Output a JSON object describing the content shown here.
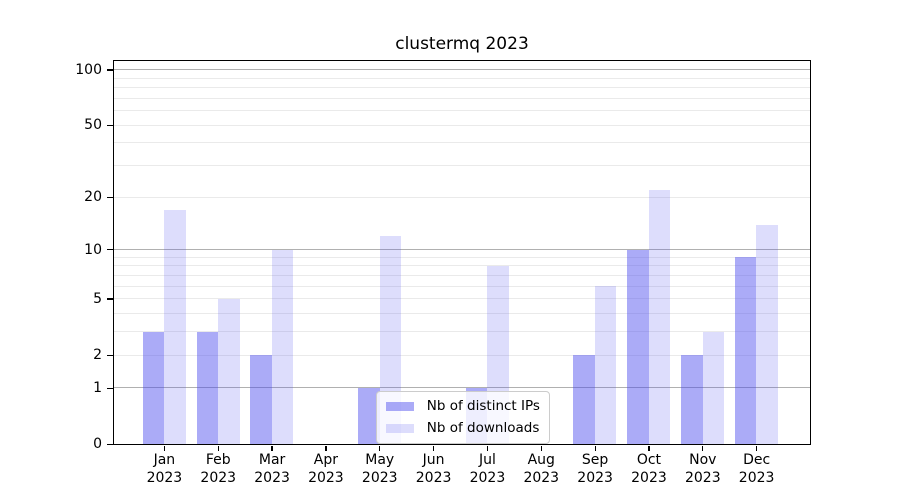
{
  "chart_data": {
    "type": "bar",
    "title": "clustermq 2023",
    "categories": [
      "Jan 2023",
      "Feb 2023",
      "Mar 2023",
      "Apr 2023",
      "May 2023",
      "Jun 2023",
      "Jul 2023",
      "Aug 2023",
      "Sep 2023",
      "Oct 2023",
      "Nov 2023",
      "Dec 2023"
    ],
    "month_labels": [
      "Jan",
      "Feb",
      "Mar",
      "Apr",
      "May",
      "Jun",
      "Jul",
      "Aug",
      "Sep",
      "Oct",
      "Nov",
      "Dec"
    ],
    "x_tick_year": "2023",
    "series": [
      {
        "name": "Nb of distinct IPs",
        "values": [
          3,
          3,
          2,
          0,
          1,
          0,
          1,
          0,
          2,
          10,
          2,
          9
        ],
        "color": "rgba(73,73,238,0.46)"
      },
      {
        "name": "Nb of downloads",
        "values": [
          17,
          5,
          10,
          0,
          12,
          0,
          8,
          0,
          6,
          22,
          3,
          14
        ],
        "color": "rgba(73,73,238,0.19)"
      }
    ],
    "y_axis": {
      "scale": "log1p",
      "tick_labels": [
        0,
        1,
        2,
        5,
        10,
        20,
        50,
        100
      ],
      "major_gridlines": [
        1,
        10,
        100
      ],
      "minor_gridlines": [
        2,
        3,
        4,
        5,
        6,
        7,
        8,
        9,
        20,
        30,
        40,
        50,
        60,
        70,
        80,
        90
      ],
      "top_value": 100
    },
    "legend": {
      "position": "lower-center",
      "entries": [
        "Nb of distinct IPs",
        "Nb of downloads"
      ]
    },
    "colors": {
      "major_grid": "#b0b0b0",
      "minor_grid": "#eaeaea",
      "spine": "#000000",
      "text": "#000000"
    },
    "grid": true
  }
}
